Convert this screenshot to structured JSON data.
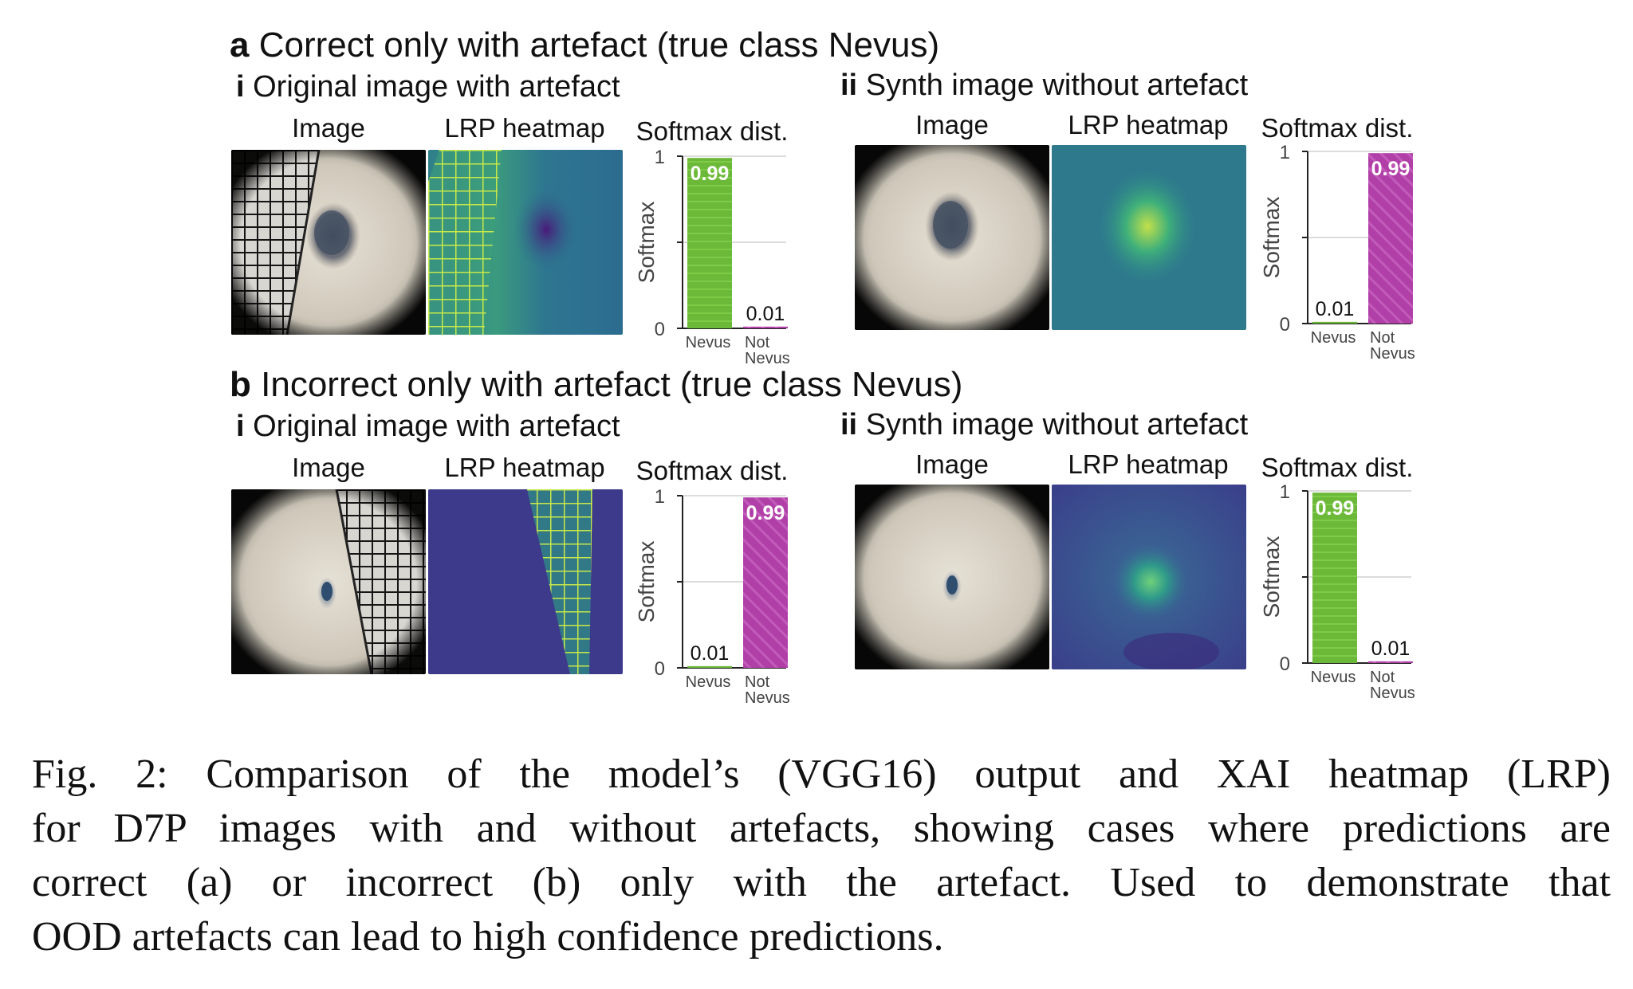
{
  "panels": [
    {
      "letter": "a",
      "title": "Correct only with artefact (true class Nevus)",
      "sub_i": {
        "numeral": "i",
        "title": "Original image with artefact"
      },
      "sub_ii": {
        "numeral": "ii",
        "title": "Synth image without artefact"
      }
    },
    {
      "letter": "b",
      "title": "Incorrect only with artefact (true class Nevus)",
      "sub_i": {
        "numeral": "i",
        "title": "Original image with artefact"
      },
      "sub_ii": {
        "numeral": "ii",
        "title": "Synth image without artefact"
      }
    }
  ],
  "column_labels": {
    "image": "Image",
    "heatmap": "LRP heatmap",
    "softmax": "Softmax dist."
  },
  "colors": {
    "nevus": "#6cb93a",
    "not_nevus": "#b13fa8"
  },
  "chart_data": [
    {
      "type": "bar",
      "panel": "a-i",
      "categories": [
        "Nevus",
        "Not Nevus"
      ],
      "values": [
        0.99,
        0.01
      ],
      "value_labels": [
        "0.99",
        "0.01"
      ],
      "ylabel": "Softmax",
      "ylim": [
        0,
        1
      ],
      "yticks": [
        "0",
        "1"
      ],
      "grid": true
    },
    {
      "type": "bar",
      "panel": "a-ii",
      "categories": [
        "Nevus",
        "Not Nevus"
      ],
      "values": [
        0.01,
        0.99
      ],
      "value_labels": [
        "0.01",
        "0.99"
      ],
      "ylabel": "Softmax",
      "ylim": [
        0,
        1
      ],
      "yticks": [
        "0",
        "1"
      ],
      "grid": true
    },
    {
      "type": "bar",
      "panel": "b-i",
      "categories": [
        "Nevus",
        "Not Nevus"
      ],
      "values": [
        0.01,
        0.99
      ],
      "value_labels": [
        "0.01",
        "0.99"
      ],
      "ylabel": "Softmax",
      "ylim": [
        0,
        1
      ],
      "yticks": [
        "0",
        "1"
      ],
      "grid": true
    },
    {
      "type": "bar",
      "panel": "b-ii",
      "categories": [
        "Nevus",
        "Not Nevus"
      ],
      "values": [
        0.99,
        0.01
      ],
      "value_labels": [
        "0.99",
        "0.01"
      ],
      "ylabel": "Softmax",
      "ylim": [
        0,
        1
      ],
      "yticks": [
        "0",
        "1"
      ],
      "grid": true
    }
  ],
  "caption": {
    "lines": [
      "Fig. 2: Comparison of the model’s (VGG16) output and XAI heatmap (LRP)",
      "for D7P images with and without artefacts, showing cases where predictions are",
      "correct (a) or incorrect (b) only with the artefact. Used to demonstrate that",
      "OOD artefacts can lead to high confidence predictions."
    ]
  }
}
